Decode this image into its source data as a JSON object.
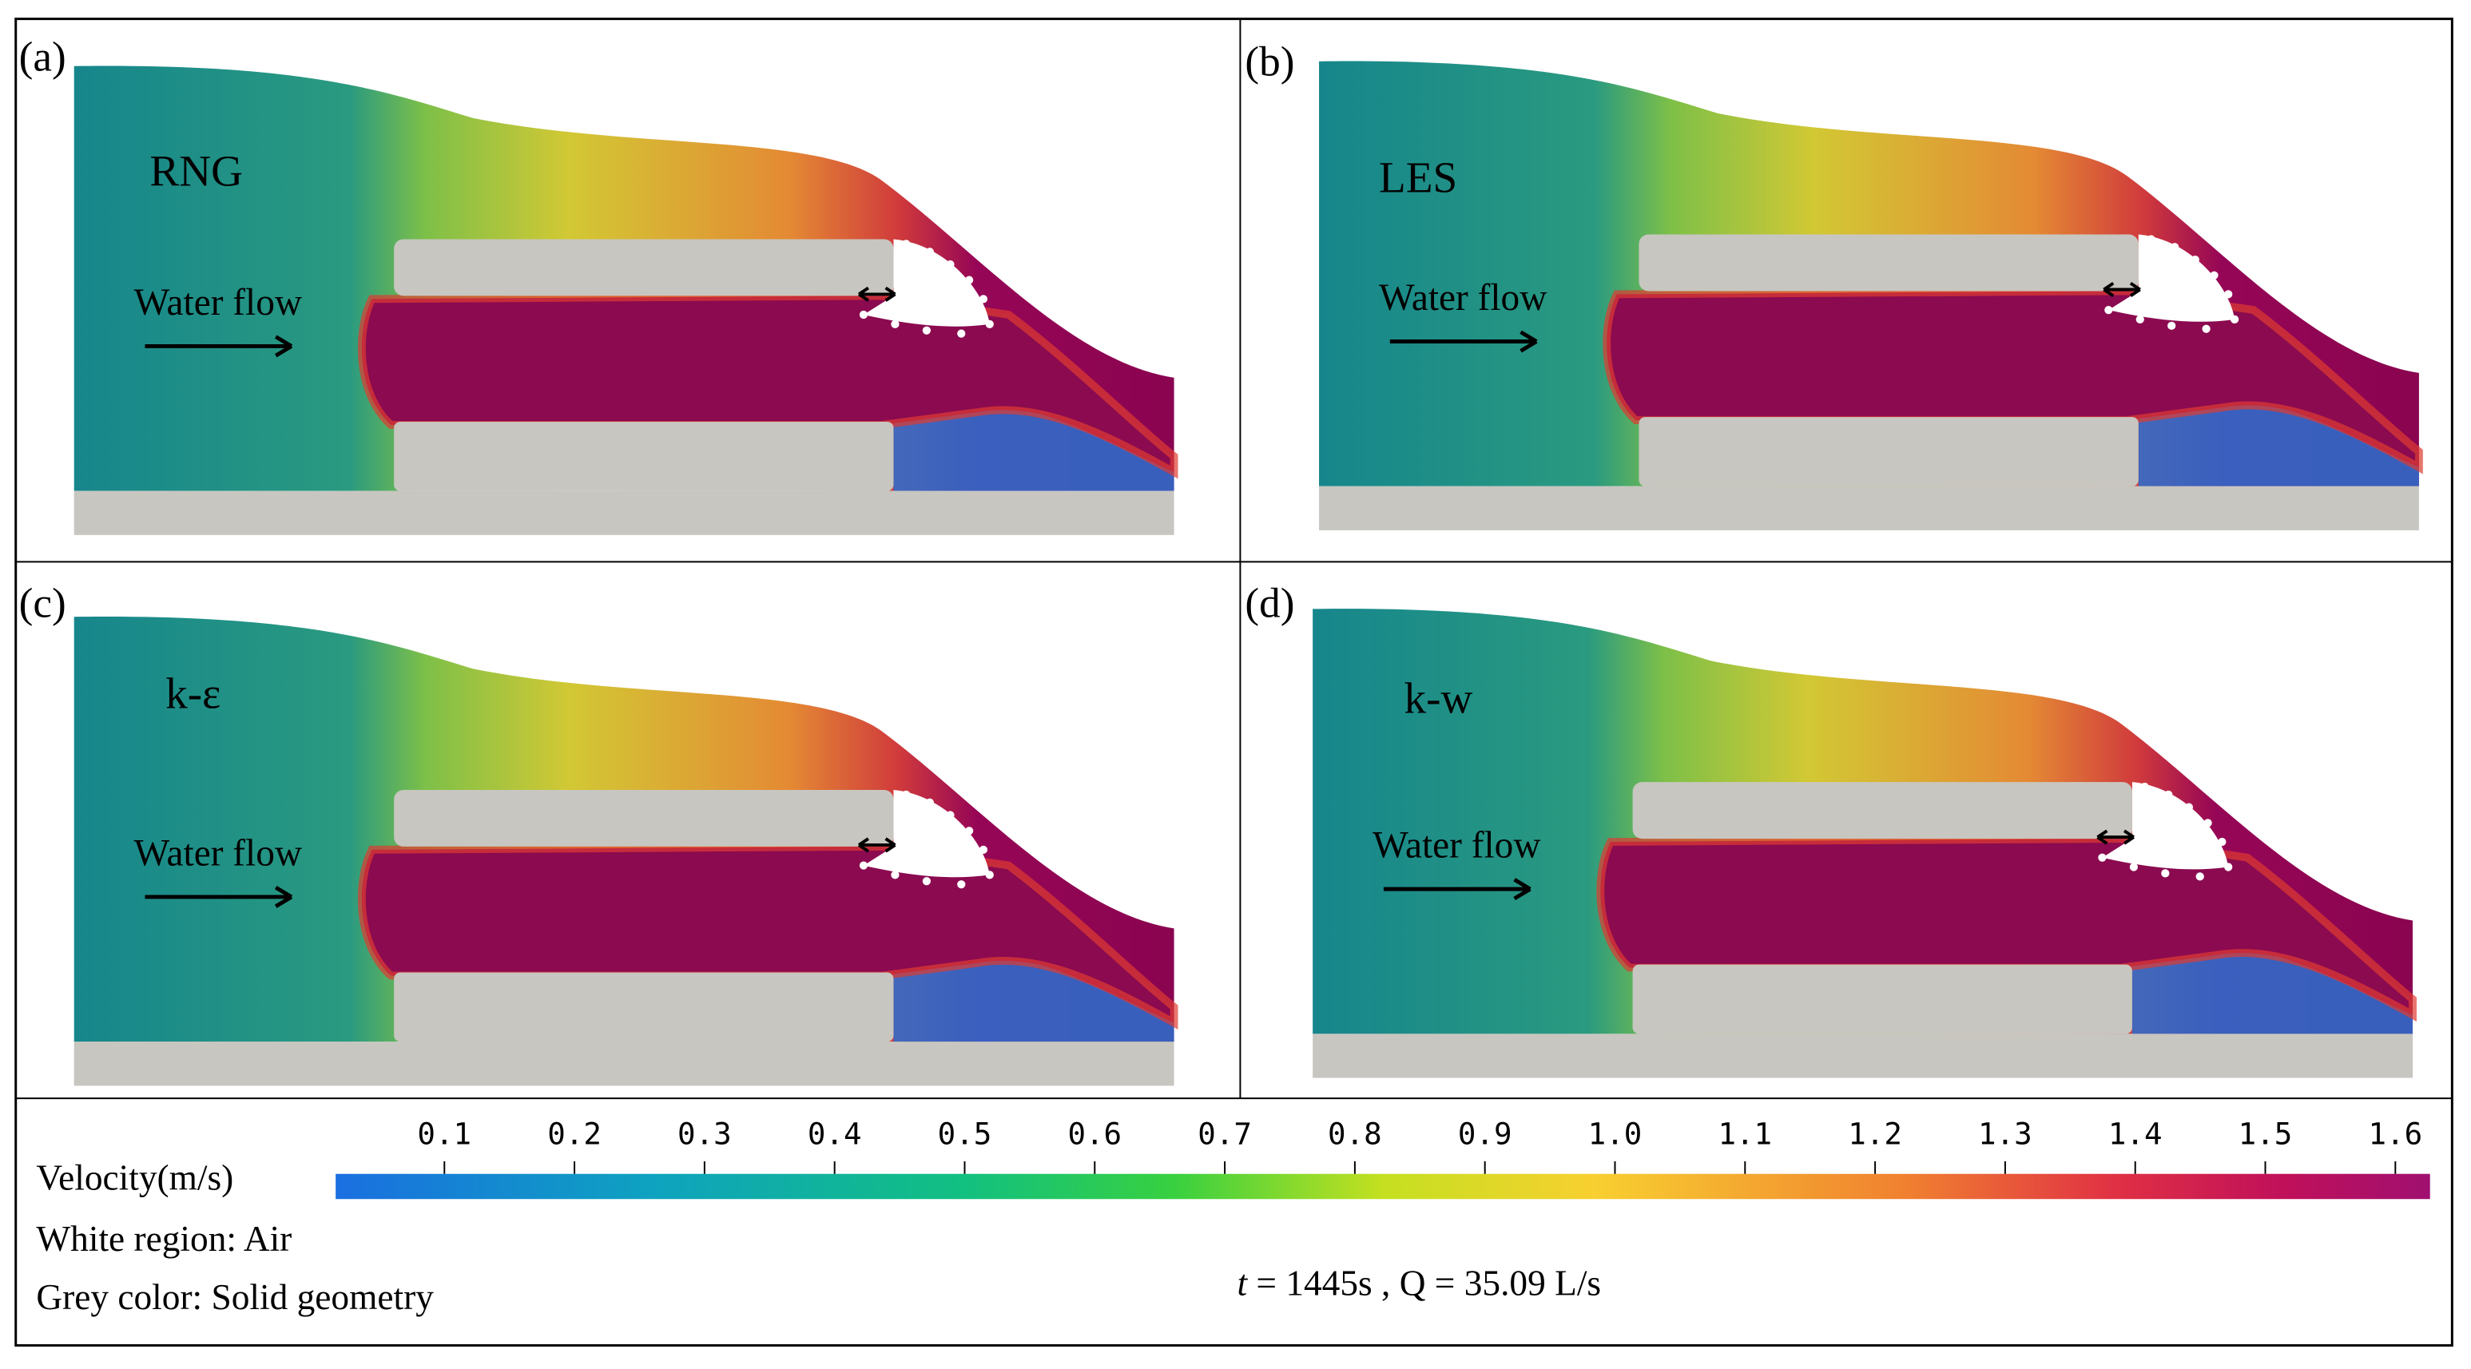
{
  "panels": [
    {
      "label": "(a)",
      "model": "RNG",
      "flow_label": "Water flow"
    },
    {
      "label": "(b)",
      "model": "LES",
      "flow_label": "Water flow"
    },
    {
      "label": "(c)",
      "model": "k-ε",
      "flow_label": "Water flow"
    },
    {
      "label": "(d)",
      "model": "k-w",
      "flow_label": "Water flow"
    }
  ],
  "legend": {
    "colorbar_title": "Velocity(m/s)",
    "air_note": "White region: Air",
    "solid_note": "Grey color: Solid geometry",
    "colorbar_ticks": [
      "0.1",
      "0.2",
      "0.3",
      "0.4",
      "0.5",
      "0.6",
      "0.7",
      "0.8",
      "0.9",
      "1.0",
      "1.1",
      "1.2",
      "1.3",
      "1.4",
      "1.5",
      "1.6"
    ],
    "time_symbol": "t",
    "conditions": " = 1445s , Q = 35.09 L/s"
  }
}
